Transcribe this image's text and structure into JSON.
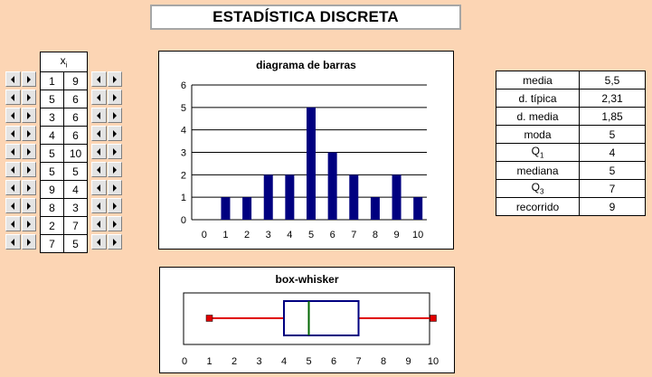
{
  "title": "ESTADÍSTICA DISCRETA",
  "table": {
    "header_symbol": "x",
    "header_subscript": "i",
    "rows": [
      {
        "a": "1",
        "b": "9"
      },
      {
        "a": "5",
        "b": "6"
      },
      {
        "a": "3",
        "b": "6"
      },
      {
        "a": "4",
        "b": "6"
      },
      {
        "a": "5",
        "b": "10"
      },
      {
        "a": "5",
        "b": "5"
      },
      {
        "a": "9",
        "b": "4"
      },
      {
        "a": "8",
        "b": "3"
      },
      {
        "a": "2",
        "b": "7"
      },
      {
        "a": "7",
        "b": "5"
      }
    ]
  },
  "stats": [
    {
      "label": "media",
      "sub": "",
      "value": "5,5"
    },
    {
      "label": "d. típica",
      "sub": "",
      "value": "2,31"
    },
    {
      "label": "d. media",
      "sub": "",
      "value": "1,85"
    },
    {
      "label": "moda",
      "sub": "",
      "value": "5"
    },
    {
      "label": "Q",
      "sub": "1",
      "value": "4"
    },
    {
      "label": "mediana",
      "sub": "",
      "value": "5"
    },
    {
      "label": "Q",
      "sub": "3",
      "value": "7"
    },
    {
      "label": "recorrido",
      "sub": "",
      "value": "9"
    }
  ],
  "colors": {
    "background": "#fcd5b4",
    "bar": "#000080",
    "whisker": "#e00000",
    "box": "#000080",
    "median": "#006400"
  },
  "chart_data": [
    {
      "type": "bar",
      "title": "diagrama de barras",
      "categories": [
        "0",
        "1",
        "2",
        "3",
        "4",
        "5",
        "6",
        "7",
        "8",
        "9",
        "10"
      ],
      "values": [
        0,
        1,
        1,
        2,
        2,
        5,
        3,
        2,
        1,
        2,
        1
      ],
      "ylim": [
        0,
        6
      ],
      "yticks": [
        "0",
        "1",
        "2",
        "3",
        "4",
        "5",
        "6"
      ],
      "grid": true
    },
    {
      "type": "box-whisker",
      "title": "box-whisker",
      "min": 1,
      "q1": 4,
      "median": 5,
      "q3": 7,
      "max": 10,
      "xlim": [
        0,
        10
      ],
      "xticks": [
        "0",
        "1",
        "2",
        "3",
        "4",
        "5",
        "6",
        "7",
        "8",
        "9",
        "10"
      ]
    }
  ]
}
